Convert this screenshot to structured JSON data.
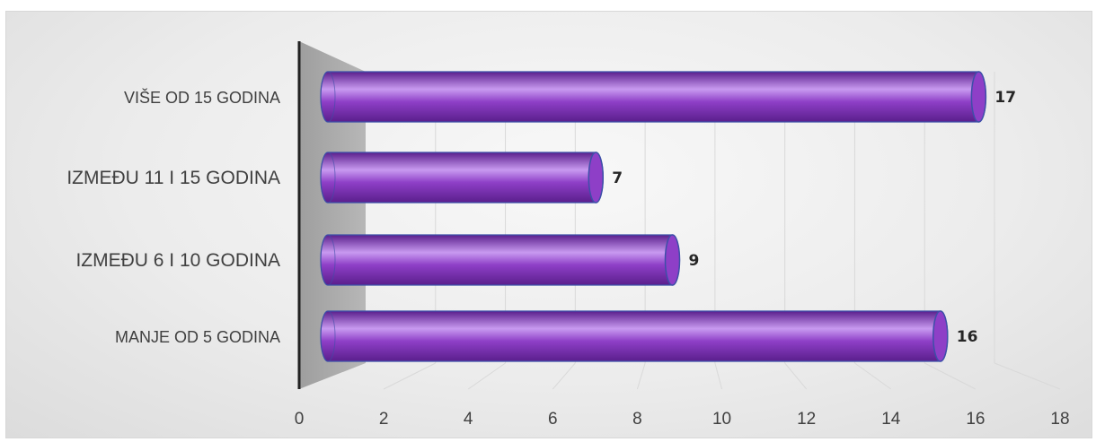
{
  "chart_data": {
    "type": "bar",
    "orientation": "horizontal",
    "style": "3d-cylinder",
    "title": "",
    "xlabel": "",
    "ylabel": "",
    "categories": [
      "MANJE OD 5 GODINA",
      "IZMEĐU 6 I 10 GODINA",
      "IZMEĐU 11 I 15 GODINA",
      "VIŠE OD 15 GODINA"
    ],
    "values": [
      16,
      9,
      7,
      17
    ],
    "data_labels": [
      "16",
      "9",
      "7",
      "17"
    ],
    "xlim": [
      0,
      18
    ],
    "x_ticks": [
      "0",
      "2",
      "4",
      "6",
      "8",
      "10",
      "12",
      "14",
      "16",
      "18"
    ],
    "grid": true,
    "legend": "none",
    "colors": {
      "bar": "#8e3fc7",
      "bar_highlight": "#c89af0",
      "bar_shadow": "#5a1f8c",
      "bar_outline": "#3d4fa8",
      "wall": "#a9a9a9"
    }
  }
}
